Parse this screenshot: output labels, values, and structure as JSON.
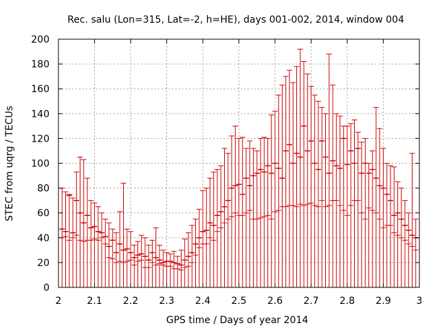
{
  "chart_data": {
    "type": "scatter",
    "style": "errorbars",
    "title": "Rec. salu (Lon=315, Lat=-2, h=HE), days 001-002, 2014, window 004",
    "xlabel": "GPS time / Days of year 2014",
    "ylabel": "STEC from uqrg / TECUs",
    "xlim": [
      2,
      3
    ],
    "ylim": [
      0,
      200
    ],
    "grid": true,
    "xticks": [
      2,
      2.1,
      2.2,
      2.3,
      2.4,
      2.5,
      2.6,
      2.7,
      2.8,
      2.9,
      3
    ],
    "xtick_labels": [
      "2",
      "2.1",
      "2.2",
      "2.3",
      "2.4",
      "2.5",
      "2.6",
      "2.7",
      "2.8",
      "2.9",
      "3"
    ],
    "yticks": [
      0,
      20,
      40,
      60,
      80,
      100,
      120,
      140,
      160,
      180,
      200
    ],
    "ytick_labels": [
      "0",
      "20",
      "40",
      "60",
      "80",
      "100",
      "120",
      "140",
      "160",
      "180",
      "200"
    ],
    "color": "#cc0000",
    "series": [
      {
        "name": "STEC",
        "x": [
          2.01,
          2.02,
          2.03,
          2.04,
          2.05,
          2.06,
          2.07,
          2.08,
          2.09,
          2.1,
          2.11,
          2.12,
          2.13,
          2.14,
          2.15,
          2.16,
          2.17,
          2.18,
          2.19,
          2.2,
          2.21,
          2.22,
          2.23,
          2.24,
          2.25,
          2.26,
          2.27,
          2.28,
          2.29,
          2.3,
          2.31,
          2.32,
          2.33,
          2.34,
          2.35,
          2.36,
          2.37,
          2.38,
          2.39,
          2.4,
          2.41,
          2.42,
          2.43,
          2.44,
          2.45,
          2.46,
          2.47,
          2.48,
          2.49,
          2.5,
          2.51,
          2.52,
          2.53,
          2.54,
          2.55,
          2.56,
          2.57,
          2.58,
          2.59,
          2.6,
          2.61,
          2.62,
          2.63,
          2.64,
          2.65,
          2.66,
          2.67,
          2.68,
          2.69,
          2.7,
          2.71,
          2.72,
          2.73,
          2.74,
          2.75,
          2.76,
          2.77,
          2.78,
          2.79,
          2.8,
          2.81,
          2.82,
          2.83,
          2.84,
          2.85,
          2.86,
          2.87,
          2.88,
          2.89,
          2.9,
          2.91,
          2.92,
          2.93,
          2.94,
          2.95,
          2.96,
          2.97,
          2.98,
          2.99
        ],
        "y": [
          47,
          45,
          74,
          44,
          70,
          60,
          52,
          58,
          48,
          49,
          45,
          44,
          41,
          33,
          38,
          28,
          35,
          30,
          31,
          28,
          24,
          26,
          27,
          25,
          22,
          28,
          24,
          22,
          20,
          21,
          21,
          20,
          19,
          18,
          22,
          25,
          28,
          35,
          40,
          45,
          46,
          52,
          50,
          58,
          61,
          65,
          70,
          80,
          82,
          83,
          75,
          88,
          82,
          90,
          92,
          95,
          93,
          98,
          92,
          100,
          96,
          88,
          110,
          115,
          100,
          108,
          105,
          130,
          110,
          118,
          100,
          95,
          118,
          105,
          92,
          102,
          98,
          96,
          120,
          99,
          110,
          100,
          112,
          92,
          100,
          92,
          95,
          88,
          82,
          80,
          75,
          70,
          58,
          60,
          55,
          50,
          46,
          42,
          40
        ],
        "y_low": [
          40,
          41,
          38,
          40,
          42,
          38,
          37,
          38,
          38,
          39,
          38,
          40,
          35,
          24,
          23,
          20,
          21,
          20,
          21,
          22,
          18,
          21,
          22,
          16,
          16,
          20,
          18,
          19,
          18,
          17,
          17,
          15,
          15,
          14,
          16,
          17,
          20,
          26,
          32,
          35,
          35,
          40,
          38,
          45,
          48,
          52,
          55,
          57,
          60,
          58,
          58,
          60,
          62,
          55,
          55,
          56,
          57,
          58,
          55,
          61,
          62,
          65,
          65,
          66,
          66,
          65,
          67,
          66,
          67,
          68,
          66,
          65,
          70,
          65,
          66,
          70,
          70,
          66,
          62,
          58,
          66,
          70,
          70,
          60,
          55,
          64,
          62,
          60,
          55,
          48,
          50,
          50,
          44,
          42,
          40,
          38,
          35,
          33,
          30
        ],
        "y_high": [
          80,
          77,
          75,
          72,
          93,
          105,
          103,
          88,
          70,
          68,
          65,
          60,
          55,
          52,
          47,
          44,
          61,
          84,
          47,
          45,
          34,
          37,
          42,
          40,
          34,
          38,
          48,
          34,
          30,
          28,
          27,
          29,
          25,
          30,
          39,
          44,
          50,
          55,
          63,
          78,
          80,
          88,
          93,
          95,
          98,
          112,
          108,
          122,
          130,
          120,
          121,
          112,
          118,
          112,
          110,
          120,
          121,
          120,
          139,
          142,
          155,
          163,
          170,
          175,
          165,
          178,
          192,
          182,
          172,
          162,
          155,
          150,
          145,
          140,
          188,
          163,
          140,
          138,
          130,
          130,
          132,
          135,
          125,
          117,
          120,
          100,
          110,
          145,
          128,
          112,
          100,
          98,
          97,
          85,
          80,
          70,
          60,
          108,
          55
        ]
      }
    ]
  }
}
